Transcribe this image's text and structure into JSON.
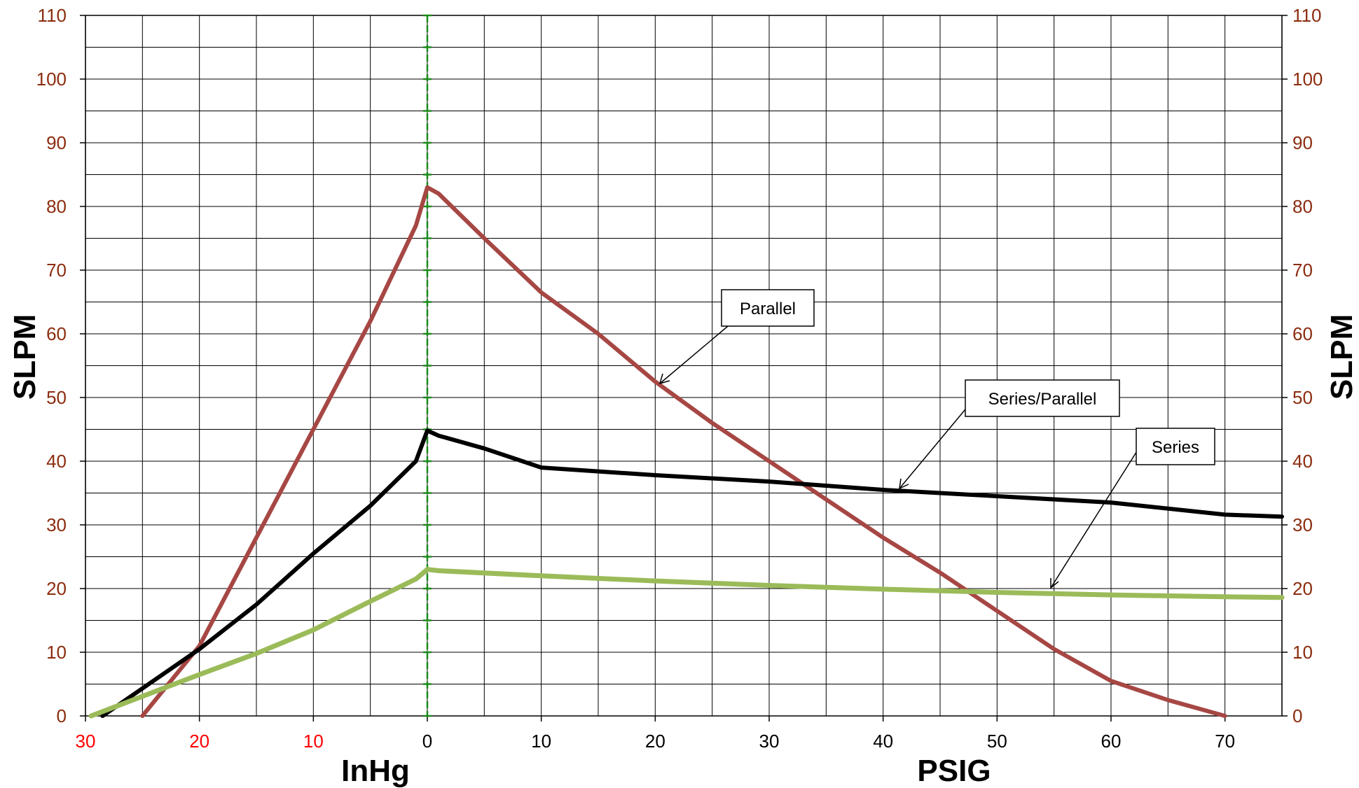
{
  "chart_data": {
    "type": "line",
    "y_title_left": "SLPM",
    "y_title_right": "SLPM",
    "x_title_vacuum": "InHg",
    "x_title_pressure": "PSIG",
    "x_range": [
      -30,
      75
    ],
    "y_range": [
      0,
      110
    ],
    "grid": true,
    "y_ticks": [
      "0",
      "10",
      "20",
      "30",
      "40",
      "50",
      "60",
      "70",
      "80",
      "90",
      "100",
      "110"
    ],
    "x_ticks_vacuum": [
      "30",
      "20",
      "10"
    ],
    "x_ticks_pressure": [
      "0",
      "10",
      "20",
      "30",
      "40",
      "50",
      "60",
      "70"
    ],
    "zero_divider_color": "#1a8a1a",
    "series": [
      {
        "name": "Parallel",
        "color": "#a64744",
        "x": [
          -25,
          -20,
          -15,
          -10,
          -5,
          -1,
          0,
          1,
          5,
          10,
          15,
          20,
          25,
          30,
          35,
          40,
          45,
          50,
          55,
          60,
          65,
          70
        ],
        "y": [
          0,
          11,
          28,
          45,
          62,
          77,
          83,
          82,
          75,
          66.5,
          60,
          52.5,
          46,
          40,
          34,
          28,
          22.5,
          16.5,
          10.5,
          5.5,
          2.5,
          0
        ]
      },
      {
        "name": "Series/Parallel",
        "color": "#000000",
        "x": [
          -28.5,
          -20,
          -15,
          -10,
          -5,
          -1,
          0,
          1,
          5,
          10,
          20,
          30,
          40,
          50,
          60,
          70,
          75
        ],
        "y": [
          0,
          10.5,
          17.5,
          25.5,
          33,
          40,
          44.8,
          44,
          42,
          39,
          37.8,
          36.8,
          35.5,
          34.5,
          33.5,
          31.6,
          31.3
        ]
      },
      {
        "name": "Series",
        "color": "#9bbb59",
        "x": [
          -29.5,
          -20,
          -15,
          -10,
          -5,
          -1,
          0,
          1,
          10,
          20,
          30,
          40,
          50,
          60,
          70,
          75
        ],
        "y": [
          0,
          6.5,
          9.8,
          13.5,
          18,
          21.5,
          23,
          22.8,
          22,
          21.2,
          20.5,
          19.9,
          19.4,
          19,
          18.7,
          18.6
        ]
      }
    ],
    "annotations": [
      {
        "text": "Parallel",
        "series": "Parallel"
      },
      {
        "text": "Series/Parallel",
        "series": "Series/Parallel"
      },
      {
        "text": "Series",
        "series": "Series"
      }
    ],
    "colors": {
      "grid": "#000000",
      "left_tick_labels": "#8b2c0e",
      "right_tick_labels": "#8b2c0e",
      "vacuum_tick_labels": "#ff0000",
      "pressure_tick_labels": "#000000"
    }
  }
}
